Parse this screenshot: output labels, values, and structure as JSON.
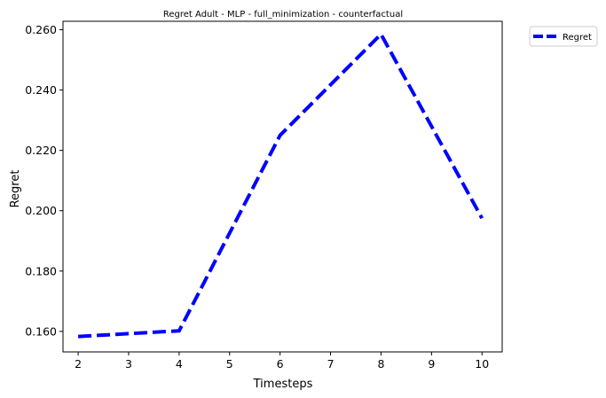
{
  "chart_data": {
    "type": "line",
    "title": "Regret Adult - MLP - full_minimization - counterfactual",
    "xlabel": "Timesteps",
    "ylabel": "Regret",
    "x": [
      2,
      4,
      6,
      8,
      10
    ],
    "series": [
      {
        "name": "Regret",
        "values": [
          0.1583,
          0.1602,
          0.225,
          0.2585,
          0.1975
        ],
        "color": "#0000ff",
        "line_style": "dashed"
      }
    ],
    "xlim": [
      1.7,
      10.4
    ],
    "ylim": [
      0.1532,
      0.2628
    ],
    "x_ticks": [
      2,
      3,
      4,
      5,
      6,
      7,
      8,
      9,
      10
    ],
    "x_tick_labels": [
      "2",
      "3",
      "4",
      "5",
      "6",
      "7",
      "8",
      "9",
      "10"
    ],
    "y_ticks": [
      0.16,
      0.18,
      0.2,
      0.22,
      0.24,
      0.26
    ],
    "y_tick_labels": [
      "0.160",
      "0.180",
      "0.200",
      "0.220",
      "0.240",
      "0.260"
    ],
    "grid": false,
    "legend_position": "outside-top-right"
  }
}
